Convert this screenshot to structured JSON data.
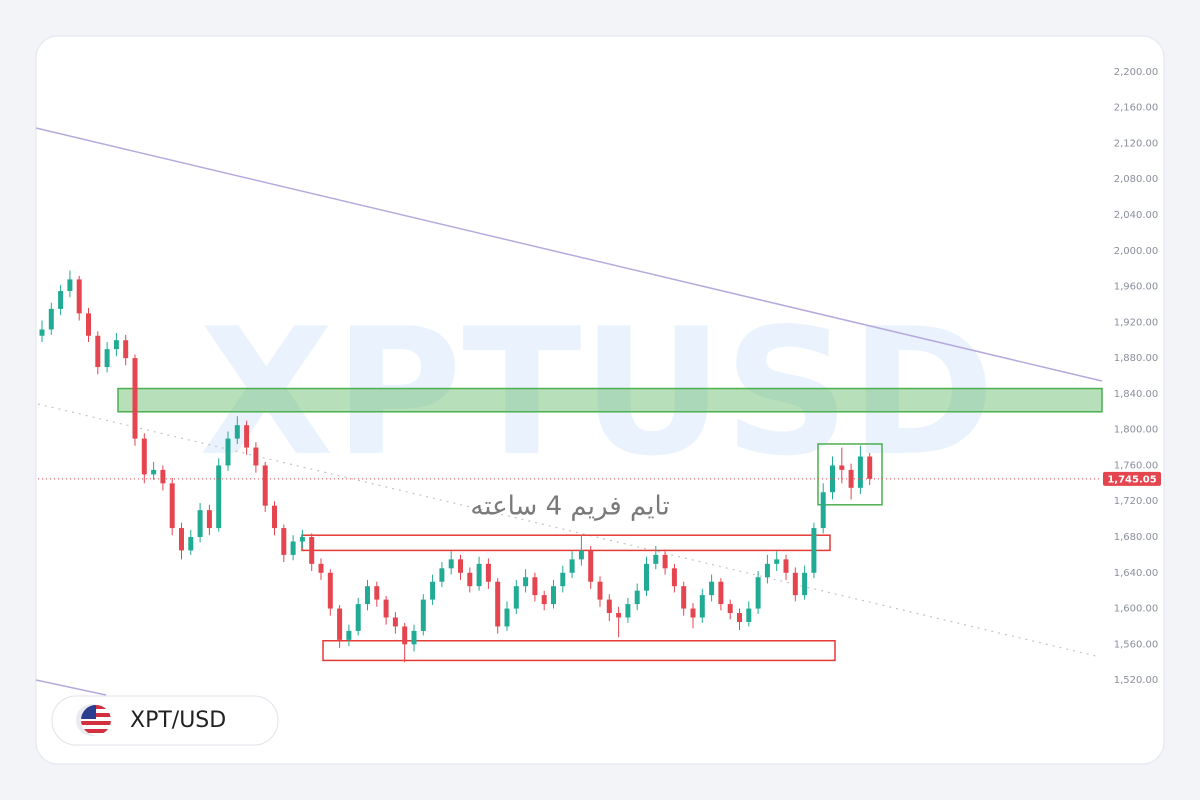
{
  "chart_data": {
    "type": "candlestick",
    "watermark": "XPTUSD",
    "annotation": "تایم فریم 4 ساعته",
    "symbol": "XPT/USD",
    "up_color": "#22ab94",
    "down_color": "#e5454f",
    "ylim": [
      1500,
      2220
    ],
    "yticks": [
      {
        "value": 1520,
        "label": "1,520.00"
      },
      {
        "value": 1560,
        "label": "1,560.00"
      },
      {
        "value": 1600,
        "label": "1,600.00"
      },
      {
        "value": 1640,
        "label": "1,640.00"
      },
      {
        "value": 1680,
        "label": "1,680.00"
      },
      {
        "value": 1720,
        "label": "1,720.00"
      },
      {
        "value": 1760,
        "label": "1,760.00"
      },
      {
        "value": 1800,
        "label": "1,800.00"
      },
      {
        "value": 1840,
        "label": "1,840.00"
      },
      {
        "value": 1880,
        "label": "1,880.00"
      },
      {
        "value": 1920,
        "label": "1,920.00"
      },
      {
        "value": 1960,
        "label": "1,960.00"
      },
      {
        "value": 2000,
        "label": "2,000.00"
      },
      {
        "value": 2040,
        "label": "2,040.00"
      },
      {
        "value": 2080,
        "label": "2,080.00"
      },
      {
        "value": 2120,
        "label": "2,120.00"
      },
      {
        "value": 2160,
        "label": "2,160.00"
      },
      {
        "value": 2200,
        "label": "2,200.00"
      }
    ],
    "current_price": {
      "value": 1745.05,
      "label": "1,745.05"
    },
    "zones": [
      {
        "low": 1820,
        "high": 1846,
        "color": "#4caf50"
      },
      {
        "low": 1665,
        "high": 1682,
        "color": "#e53935"
      },
      {
        "low": 1542,
        "high": 1564,
        "color": "#e53935"
      },
      {
        "low": 1716,
        "high": 1784,
        "color": "#4caf50"
      }
    ],
    "open": [
      1905,
      1912,
      1935,
      1955,
      1968,
      1930,
      1905,
      1870,
      1890,
      1900,
      1880,
      1790,
      1750,
      1755,
      1740,
      1690,
      1665,
      1680,
      1710,
      1690,
      1760,
      1790,
      1805,
      1780,
      1760,
      1715,
      1690,
      1660,
      1675,
      1680,
      1650,
      1640,
      1600,
      1565,
      1575,
      1605,
      1625,
      1610,
      1590,
      1580,
      1560,
      1575,
      1610,
      1630,
      1645,
      1655,
      1640,
      1625,
      1650,
      1630,
      1580,
      1600,
      1625,
      1635,
      1615,
      1605,
      1625,
      1640,
      1655,
      1665,
      1630,
      1610,
      1595,
      1590,
      1605,
      1620,
      1650,
      1660,
      1645,
      1625,
      1600,
      1590,
      1615,
      1630,
      1605,
      1595,
      1585,
      1600,
      1635,
      1650,
      1655,
      1640,
      1615,
      1640,
      1690,
      1730,
      1760,
      1755,
      1735,
      1770
    ],
    "high": [
      1922,
      1942,
      1962,
      1978,
      1972,
      1936,
      1910,
      1898,
      1908,
      1906,
      1884,
      1796,
      1764,
      1760,
      1746,
      1696,
      1688,
      1718,
      1716,
      1768,
      1798,
      1815,
      1810,
      1786,
      1764,
      1720,
      1694,
      1682,
      1688,
      1684,
      1656,
      1644,
      1604,
      1582,
      1612,
      1632,
      1630,
      1614,
      1596,
      1584,
      1582,
      1616,
      1638,
      1652,
      1664,
      1660,
      1646,
      1658,
      1656,
      1634,
      1608,
      1632,
      1644,
      1640,
      1620,
      1632,
      1648,
      1664,
      1682,
      1670,
      1636,
      1616,
      1602,
      1612,
      1628,
      1658,
      1670,
      1666,
      1650,
      1630,
      1606,
      1622,
      1638,
      1634,
      1610,
      1600,
      1608,
      1642,
      1660,
      1664,
      1660,
      1646,
      1648,
      1696,
      1740,
      1770,
      1780,
      1762,
      1782,
      1774
    ],
    "low": [
      1898,
      1906,
      1928,
      1948,
      1922,
      1898,
      1862,
      1864,
      1882,
      1872,
      1782,
      1740,
      1744,
      1732,
      1682,
      1655,
      1660,
      1674,
      1682,
      1686,
      1754,
      1784,
      1772,
      1752,
      1708,
      1682,
      1652,
      1654,
      1668,
      1642,
      1632,
      1592,
      1556,
      1558,
      1570,
      1598,
      1602,
      1582,
      1572,
      1540,
      1552,
      1570,
      1604,
      1624,
      1638,
      1632,
      1618,
      1620,
      1622,
      1572,
      1575,
      1594,
      1618,
      1608,
      1598,
      1600,
      1618,
      1634,
      1648,
      1622,
      1602,
      1586,
      1568,
      1584,
      1598,
      1614,
      1644,
      1638,
      1618,
      1592,
      1578,
      1584,
      1608,
      1598,
      1588,
      1576,
      1580,
      1594,
      1628,
      1642,
      1632,
      1608,
      1610,
      1634,
      1684,
      1722,
      1740,
      1722,
      1728,
      1738
    ],
    "close": [
      1912,
      1935,
      1955,
      1968,
      1930,
      1905,
      1870,
      1890,
      1900,
      1880,
      1790,
      1750,
      1755,
      1740,
      1690,
      1665,
      1680,
      1710,
      1690,
      1760,
      1790,
      1805,
      1780,
      1760,
      1715,
      1690,
      1660,
      1675,
      1680,
      1650,
      1640,
      1600,
      1565,
      1575,
      1605,
      1625,
      1610,
      1590,
      1580,
      1560,
      1575,
      1610,
      1630,
      1645,
      1655,
      1640,
      1625,
      1650,
      1630,
      1580,
      1600,
      1625,
      1635,
      1615,
      1605,
      1625,
      1640,
      1655,
      1665,
      1630,
      1610,
      1595,
      1590,
      1605,
      1620,
      1650,
      1660,
      1645,
      1625,
      1600,
      1590,
      1615,
      1630,
      1605,
      1595,
      1585,
      1600,
      1635,
      1650,
      1655,
      1640,
      1615,
      1640,
      1690,
      1730,
      1760,
      1755,
      1735,
      1770,
      1745.05
    ]
  }
}
